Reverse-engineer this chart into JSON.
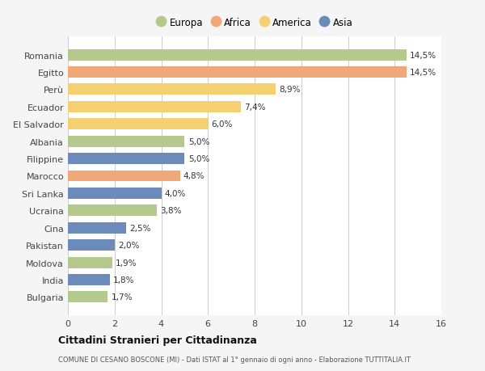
{
  "categories": [
    "Romania",
    "Egitto",
    "Perù",
    "Ecuador",
    "El Salvador",
    "Albania",
    "Filippine",
    "Marocco",
    "Sri Lanka",
    "Ucraina",
    "Cina",
    "Pakistan",
    "Moldova",
    "India",
    "Bulgaria"
  ],
  "values": [
    14.5,
    14.5,
    8.9,
    7.4,
    6.0,
    5.0,
    5.0,
    4.8,
    4.0,
    3.8,
    2.5,
    2.0,
    1.9,
    1.8,
    1.7
  ],
  "labels": [
    "14,5%",
    "14,5%",
    "8,9%",
    "7,4%",
    "6,0%",
    "5,0%",
    "5,0%",
    "4,8%",
    "4,0%",
    "3,8%",
    "2,5%",
    "2,0%",
    "1,9%",
    "1,8%",
    "1,7%"
  ],
  "continents": [
    "Europa",
    "Africa",
    "America",
    "America",
    "America",
    "Europa",
    "Asia",
    "Africa",
    "Asia",
    "Europa",
    "Asia",
    "Asia",
    "Europa",
    "Asia",
    "Europa"
  ],
  "colors": {
    "Europa": "#b5c98e",
    "Africa": "#f0a878",
    "America": "#f5d070",
    "Asia": "#6b8cba"
  },
  "legend_order": [
    "Europa",
    "Africa",
    "America",
    "Asia"
  ],
  "title": "Cittadini Stranieri per Cittadinanza",
  "subtitle": "COMUNE DI CESANO BOSCONE (MI) - Dati ISTAT al 1° gennaio di ogni anno - Elaborazione TUTTITALIA.IT",
  "xlim": [
    0,
    16
  ],
  "xticks": [
    0,
    2,
    4,
    6,
    8,
    10,
    12,
    14,
    16
  ],
  "background_color": "#f5f5f5",
  "bar_background": "#ffffff"
}
